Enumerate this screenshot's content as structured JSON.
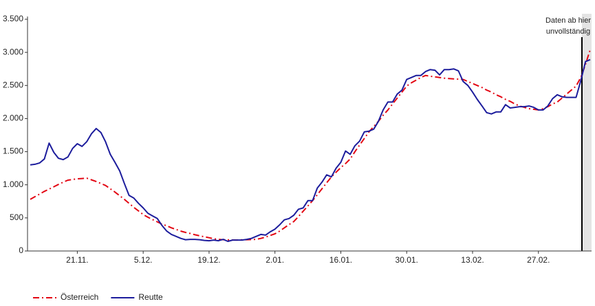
{
  "chart_data": {
    "type": "line",
    "annotation": [
      "Daten ab hier",
      "unvollständig"
    ],
    "categories": [
      null,
      null,
      null,
      null,
      null,
      null,
      null,
      null,
      null,
      null,
      "21.11.",
      null,
      null,
      null,
      null,
      null,
      null,
      null,
      null,
      null,
      null,
      null,
      null,
      null,
      "5.12.",
      null,
      null,
      null,
      null,
      null,
      null,
      null,
      null,
      null,
      null,
      null,
      null,
      null,
      "19.12.",
      null,
      null,
      null,
      null,
      null,
      null,
      null,
      null,
      null,
      null,
      null,
      null,
      null,
      "2.01.",
      null,
      null,
      null,
      null,
      null,
      null,
      null,
      null,
      null,
      null,
      null,
      null,
      null,
      "16.01.",
      null,
      null,
      null,
      null,
      null,
      null,
      null,
      null,
      null,
      null,
      null,
      null,
      null,
      "30.01.",
      null,
      null,
      null,
      null,
      null,
      null,
      null,
      null,
      null,
      null,
      null,
      null,
      null,
      "13.02.",
      null,
      null,
      null,
      null,
      null,
      null,
      null,
      null,
      null,
      null,
      null,
      null,
      null,
      "27.02.",
      null,
      null,
      null,
      null,
      null,
      null,
      null,
      null,
      null,
      null,
      null
    ],
    "series": [
      {
        "name": "Österreich",
        "color": "#e30613",
        "style": "dash-dot",
        "values": [
          780,
          820,
          860,
          900,
          935,
          970,
          1005,
          1040,
          1070,
          1080,
          1090,
          1095,
          1100,
          1075,
          1050,
          1020,
          990,
          940,
          890,
          835,
          780,
          720,
          660,
          605,
          550,
          510,
          475,
          440,
          405,
          380,
          350,
          325,
          300,
          280,
          265,
          245,
          230,
          215,
          200,
          185,
          175,
          170,
          168,
          166,
          165,
          168,
          170,
          172,
          175,
          190,
          210,
          235,
          260,
          300,
          350,
          400,
          445,
          520,
          600,
          680,
          760,
          850,
          940,
          1030,
          1120,
          1190,
          1260,
          1320,
          1390,
          1500,
          1600,
          1700,
          1800,
          1880,
          1960,
          2050,
          2130,
          2220,
          2310,
          2400,
          2490,
          2540,
          2580,
          2620,
          2650,
          2640,
          2630,
          2620,
          2610,
          2605,
          2600,
          2595,
          2590,
          2560,
          2530,
          2500,
          2470,
          2430,
          2400,
          2360,
          2330,
          2290,
          2260,
          2220,
          2190,
          2170,
          2150,
          2140,
          2130,
          2150,
          2180,
          2220,
          2250,
          2310,
          2370,
          2430,
          2490,
          2620,
          2820,
          3040
        ]
      },
      {
        "name": "Reutte",
        "color": "#1c1c9c",
        "style": "solid",
        "values": [
          1300,
          1310,
          1330,
          1390,
          1630,
          1490,
          1400,
          1380,
          1420,
          1550,
          1620,
          1580,
          1650,
          1770,
          1850,
          1790,
          1650,
          1460,
          1340,
          1210,
          1020,
          840,
          800,
          720,
          650,
          570,
          530,
          490,
          385,
          300,
          250,
          220,
          190,
          170,
          175,
          175,
          170,
          160,
          155,
          165,
          155,
          175,
          145,
          165,
          165,
          165,
          175,
          190,
          220,
          250,
          240,
          290,
          330,
          395,
          470,
          490,
          540,
          630,
          650,
          760,
          760,
          950,
          1040,
          1150,
          1120,
          1250,
          1340,
          1510,
          1460,
          1590,
          1660,
          1800,
          1810,
          1840,
          1960,
          2130,
          2250,
          2250,
          2370,
          2430,
          2590,
          2620,
          2650,
          2650,
          2710,
          2740,
          2730,
          2660,
          2740,
          2740,
          2750,
          2720,
          2560,
          2500,
          2400,
          2290,
          2190,
          2090,
          2070,
          2100,
          2100,
          2210,
          2160,
          2170,
          2180,
          2180,
          2190,
          2170,
          2130,
          2130,
          2190,
          2300,
          2360,
          2330,
          2320,
          2320,
          2320,
          2570,
          2860,
          2890
        ]
      }
    ],
    "ylim": [
      0,
      3500
    ],
    "yticks": [
      0,
      500,
      {
        "value": 1000,
        "label": "1.000"
      },
      {
        "value": 1500,
        "label": "1.500"
      },
      {
        "value": 2000,
        "label": "2.000"
      },
      {
        "value": 2500,
        "label": "2.500"
      },
      {
        "value": 3000,
        "label": "3.000"
      },
      {
        "value": 3500,
        "label": "3.500"
      }
    ],
    "grid": false
  }
}
